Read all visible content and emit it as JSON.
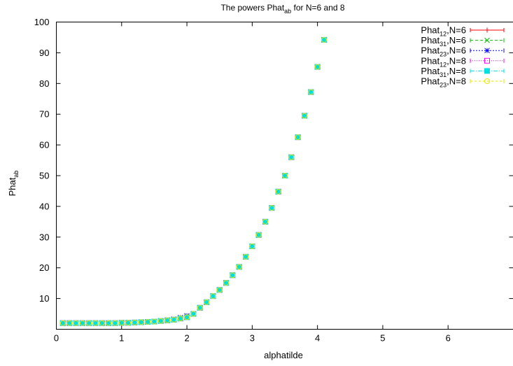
{
  "chart_data": {
    "type": "scatter",
    "title": {
      "base": "The powers Phat",
      "sub": "ab",
      "suffix": " for N=6 and 8"
    },
    "xlabel": "alphatilde",
    "ylabel": {
      "base": "Phat",
      "sub": "ab"
    },
    "xlim": [
      0,
      7
    ],
    "ylim": [
      0,
      100
    ],
    "x_ticks": [
      "0",
      "1",
      "2",
      "3",
      "4",
      "5",
      "6"
    ],
    "y_ticks": [
      "10",
      "20",
      "30",
      "40",
      "50",
      "60",
      "70",
      "80",
      "90",
      "100"
    ],
    "grid": false,
    "legend_position": "top-right",
    "x": [
      0.1,
      0.2,
      0.3,
      0.4,
      0.5,
      0.6,
      0.7,
      0.8,
      0.9,
      1.0,
      1.1,
      1.2,
      1.3,
      1.4,
      1.5,
      1.6,
      1.7,
      1.8,
      1.9,
      2.0,
      2.1,
      2.2,
      2.3,
      2.4,
      2.5,
      2.6,
      2.7,
      2.8,
      2.9,
      3.0,
      3.1,
      3.2,
      3.3,
      3.4,
      3.5,
      3.6,
      3.7,
      3.8,
      3.9,
      4.0,
      4.1
    ],
    "series": [
      {
        "name": {
          "base": "Phat",
          "sub": "12",
          "suffix": ",N=6"
        },
        "color": "#ff0000",
        "marker": "plus",
        "dash": "",
        "values": [
          2.0,
          2.0,
          2.0,
          2.0,
          2.0,
          2.0,
          2.0,
          2.0,
          2.0,
          2.1,
          2.1,
          2.2,
          2.3,
          2.4,
          2.5,
          2.7,
          2.9,
          3.1,
          3.5,
          3.9,
          5.0,
          7.0,
          8.8,
          10.8,
          12.8,
          15.1,
          17.6,
          20.3,
          23.6,
          27.0,
          30.7,
          35.0,
          39.5,
          44.8,
          50.0,
          56.0,
          62.5,
          69.5,
          77.2,
          85.4,
          94.2
        ]
      },
      {
        "name": {
          "base": "Phat",
          "sub": "31",
          "suffix": ",N=6"
        },
        "color": "#00c000",
        "marker": "cross",
        "dash": "4,3",
        "values": [
          2.0,
          2.0,
          2.0,
          2.0,
          2.0,
          2.0,
          2.0,
          2.0,
          2.0,
          2.1,
          2.1,
          2.2,
          2.3,
          2.4,
          2.5,
          2.7,
          2.9,
          3.1,
          3.5,
          3.9,
          5.0,
          7.0,
          8.8,
          10.8,
          12.8,
          15.1,
          17.6,
          20.3,
          23.6,
          27.0,
          30.7,
          35.0,
          39.5,
          44.8,
          50.0,
          56.0,
          62.5,
          69.5,
          77.2,
          85.4,
          94.2
        ]
      },
      {
        "name": {
          "base": "Phat",
          "sub": "23",
          "suffix": ",N=6"
        },
        "color": "#0000ff",
        "marker": "star",
        "dash": "2,2",
        "values": [
          2.0,
          2.0,
          2.0,
          2.0,
          2.0,
          2.0,
          2.0,
          2.0,
          2.0,
          2.1,
          2.1,
          2.2,
          2.3,
          2.4,
          2.5,
          2.7,
          3.0,
          3.3,
          3.8,
          4.4,
          5.0,
          7.0,
          8.8,
          10.8,
          12.8,
          15.1,
          17.6,
          20.3,
          23.6,
          27.0,
          30.7,
          35.0,
          39.5,
          44.8,
          50.0,
          56.0,
          62.5,
          69.5,
          77.2,
          85.4,
          94.2
        ]
      },
      {
        "name": {
          "base": "Phat",
          "sub": "12",
          "suffix": ",N=8"
        },
        "color": "#ff00ff",
        "marker": "square",
        "dash": "1,2",
        "values": [
          2.0,
          2.0,
          2.0,
          2.0,
          2.0,
          2.0,
          2.0,
          2.0,
          2.0,
          2.1,
          2.1,
          2.2,
          2.3,
          2.4,
          2.5,
          2.7,
          2.9,
          3.1,
          3.5,
          3.9,
          5.0,
          7.0,
          8.8,
          10.8,
          12.8,
          15.1,
          17.6,
          20.3,
          23.6,
          27.0,
          30.7,
          35.0,
          39.5,
          44.8,
          50.0,
          56.0,
          62.5,
          69.5,
          77.2,
          85.4,
          94.2
        ]
      },
      {
        "name": {
          "base": "Phat",
          "sub": "31",
          "suffix": ",N=8"
        },
        "color": "#00e0e0",
        "marker": "filled-square",
        "dash": "6,2,1,2",
        "values": [
          2.0,
          2.0,
          2.0,
          2.0,
          2.0,
          2.0,
          2.0,
          2.0,
          2.0,
          2.1,
          2.1,
          2.2,
          2.3,
          2.4,
          2.5,
          2.7,
          2.9,
          3.1,
          3.5,
          3.9,
          5.0,
          7.0,
          8.8,
          10.8,
          12.8,
          15.1,
          17.6,
          20.3,
          23.6,
          27.0,
          30.7,
          35.0,
          39.5,
          44.8,
          50.0,
          56.0,
          62.5,
          69.5,
          77.2,
          85.4,
          94.2
        ]
      },
      {
        "name": {
          "base": "Phat",
          "sub": "23",
          "suffix": ",N=8"
        },
        "color": "#e6e600",
        "marker": "circle",
        "dash": "3,3",
        "values": [
          2.0,
          2.0,
          2.0,
          2.0,
          2.0,
          2.0,
          2.0,
          2.0,
          2.0,
          2.1,
          2.1,
          2.2,
          2.3,
          2.4,
          2.5,
          2.7,
          2.9,
          3.1,
          3.5,
          3.9,
          5.0,
          7.0,
          8.8,
          10.8,
          12.8,
          15.1,
          17.6,
          20.3,
          23.6,
          27.0,
          30.7,
          35.0,
          39.5,
          44.8,
          50.0,
          56.0,
          62.5,
          69.5,
          77.2,
          85.4,
          94.2
        ]
      }
    ]
  }
}
